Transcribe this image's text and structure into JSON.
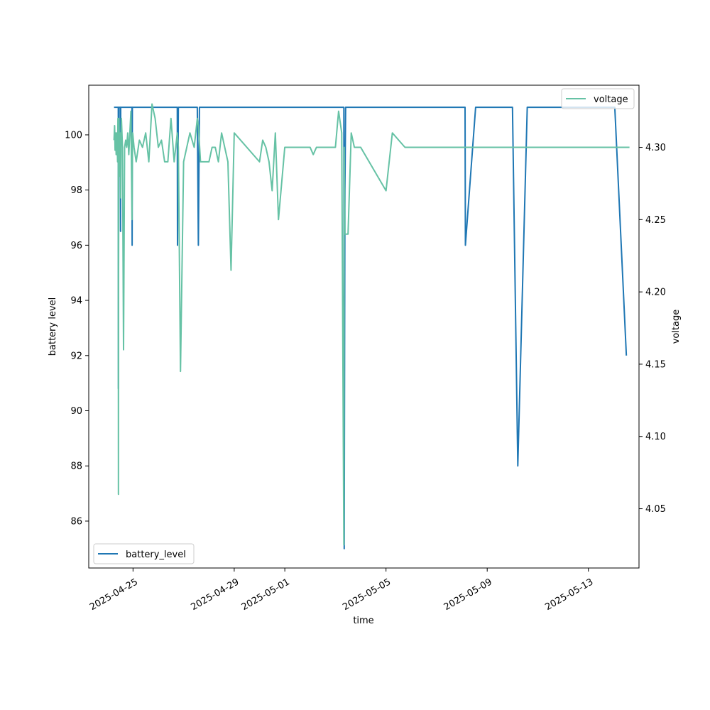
{
  "chart_data": {
    "type": "line",
    "xlabel": "time",
    "ylabel": "battery level",
    "y2label": "voltage",
    "xlim": [
      "2025-04-23T06:00",
      "2025-05-15T00:00"
    ],
    "ylim": [
      84.3,
      101.8
    ],
    "y2lim": [
      4.009,
      4.343
    ],
    "x_ticks": [
      "2025-04-25",
      "2025-04-29",
      "2025-05-01",
      "2025-05-05",
      "2025-05-09",
      "2025-05-13"
    ],
    "y_ticks": [
      86,
      88,
      90,
      92,
      94,
      96,
      98,
      100
    ],
    "y2_ticks": [
      "4.05",
      "4.10",
      "4.15",
      "4.20",
      "4.25",
      "4.30"
    ],
    "legend": {
      "left_axis": "lower-left",
      "right_axis": "upper-right"
    },
    "grid": false,
    "series": [
      {
        "name": "battery_level",
        "axis": "left",
        "color": "#1f77b4",
        "x": [
          "2025-04-24T06:00",
          "2025-04-24T10:00",
          "2025-04-24T10:10",
          "2025-04-24T10:20",
          "2025-04-24T10:30",
          "2025-04-24T10:40",
          "2025-04-24T12:00",
          "2025-04-24T12:10",
          "2025-04-24T12:20",
          "2025-04-24T12:30",
          "2025-04-24T23:00",
          "2025-04-24T23:10",
          "2025-04-24T23:20",
          "2025-04-24T23:30",
          "2025-04-26T17:00",
          "2025-04-26T18:00",
          "2025-04-26T18:10",
          "2025-04-26T19:00",
          "2025-04-26T20:00",
          "2025-04-27T13:00",
          "2025-04-27T14:00",
          "2025-04-27T15:00",
          "2025-05-03T08:00",
          "2025-05-03T08:20",
          "2025-05-03T09:00",
          "2025-05-03T09:40",
          "2025-05-08T03:00",
          "2025-05-08T03:20",
          "2025-05-08T13:00",
          "2025-05-10T00:00",
          "2025-05-10T05:00",
          "2025-05-10T14:00",
          "2025-05-14T01:00",
          "2025-05-14T12:00"
        ],
        "y": [
          101,
          101,
          90.8,
          97.2,
          101,
          101,
          101,
          96.5,
          101,
          101,
          101,
          96,
          101,
          101,
          101,
          101,
          96,
          101,
          101,
          101,
          96,
          101,
          101,
          85,
          98,
          101,
          101,
          96,
          101,
          101,
          88,
          101,
          101,
          92
        ]
      },
      {
        "name": "voltage",
        "axis": "right",
        "color": "#66c2a5",
        "x": [
          "2025-04-24T06:00",
          "2025-04-24T06:30",
          "2025-04-24T07:00",
          "2025-04-24T07:30",
          "2025-04-24T08:00",
          "2025-04-24T08:30",
          "2025-04-24T09:00",
          "2025-04-24T09:20",
          "2025-04-24T09:40",
          "2025-04-24T10:00",
          "2025-04-24T10:10",
          "2025-04-24T10:20",
          "2025-04-24T10:40",
          "2025-04-24T11:00",
          "2025-04-24T11:30",
          "2025-04-24T12:00",
          "2025-04-24T12:20",
          "2025-04-24T12:40",
          "2025-04-24T13:00",
          "2025-04-24T14:00",
          "2025-04-24T15:00",
          "2025-04-24T16:00",
          "2025-04-24T17:00",
          "2025-04-24T18:00",
          "2025-04-24T19:00",
          "2025-04-24T20:00",
          "2025-04-24T21:00",
          "2025-04-24T22:00",
          "2025-04-24T23:00",
          "2025-04-24T23:20",
          "2025-04-24T23:40",
          "2025-04-25T01:00",
          "2025-04-25T03:00",
          "2025-04-25T06:00",
          "2025-04-25T09:00",
          "2025-04-25T12:00",
          "2025-04-25T15:00",
          "2025-04-25T18:00",
          "2025-04-25T21:00",
          "2025-04-26T00:00",
          "2025-04-26T03:00",
          "2025-04-26T06:00",
          "2025-04-26T09:00",
          "2025-04-26T12:00",
          "2025-04-26T15:00",
          "2025-04-26T18:00",
          "2025-04-26T19:00",
          "2025-04-26T21:00",
          "2025-04-27T00:00",
          "2025-04-27T06:00",
          "2025-04-27T10:00",
          "2025-04-27T13:00",
          "2025-04-27T14:00",
          "2025-04-27T16:00",
          "2025-04-28T00:00",
          "2025-04-28T03:00",
          "2025-04-28T06:00",
          "2025-04-28T09:00",
          "2025-04-28T12:00",
          "2025-04-28T15:00",
          "2025-04-28T18:00",
          "2025-04-28T21:00",
          "2025-04-29T00:00",
          "2025-04-30T00:00",
          "2025-04-30T03:00",
          "2025-04-30T06:00",
          "2025-04-30T09:00",
          "2025-04-30T12:00",
          "2025-04-30T15:00",
          "2025-04-30T18:00",
          "2025-05-01T00:00",
          "2025-05-01T06:00",
          "2025-05-01T12:00",
          "2025-05-01T18:00",
          "2025-05-02T00:00",
          "2025-05-02T03:00",
          "2025-05-02T06:00",
          "2025-05-02T12:00",
          "2025-05-02T18:00",
          "2025-05-03T00:00",
          "2025-05-03T03:00",
          "2025-05-03T06:00",
          "2025-05-03T08:00",
          "2025-05-03T08:20",
          "2025-05-03T09:00",
          "2025-05-03T12:00",
          "2025-05-03T15:00",
          "2025-05-03T18:00",
          "2025-05-03T21:00",
          "2025-05-04T00:00",
          "2025-05-05T00:00",
          "2025-05-05T06:00",
          "2025-05-05T12:00",
          "2025-05-05T18:00",
          "2025-05-06T00:00",
          "2025-05-06T06:00",
          "2025-05-06T12:00",
          "2025-05-06T18:00",
          "2025-05-07T00:00",
          "2025-05-07T06:00",
          "2025-05-07T12:00",
          "2025-05-07T18:00",
          "2025-05-08T00:00",
          "2025-05-08T03:00",
          "2025-05-08T06:00",
          "2025-05-08T09:00",
          "2025-05-08T12:00",
          "2025-05-08T15:00",
          "2025-05-08T18:00",
          "2025-05-08T21:00",
          "2025-05-09T00:00",
          "2025-05-09T06:00",
          "2025-05-09T12:00",
          "2025-05-09T18:00",
          "2025-05-10T00:00",
          "2025-05-10T03:00",
          "2025-05-10T05:00",
          "2025-05-10T09:00",
          "2025-05-10T14:00",
          "2025-05-10T18:00",
          "2025-05-11T00:00",
          "2025-05-11T06:00",
          "2025-05-11T12:00",
          "2025-05-11T18:00",
          "2025-05-12T00:00",
          "2025-05-12T06:00",
          "2025-05-12T12:00",
          "2025-05-12T18:00",
          "2025-05-13T00:00",
          "2025-05-13T06:00",
          "2025-05-13T12:00",
          "2025-05-13T18:00",
          "2025-05-14T00:00",
          "2025-05-14T06:00",
          "2025-05-14T12:00",
          "2025-05-14T15:00"
        ],
        "y": [
          4.305,
          4.315,
          4.298,
          4.31,
          4.295,
          4.31,
          4.3,
          4.29,
          4.32,
          4.298,
          4.06,
          4.28,
          4.32,
          4.29,
          4.28,
          4.31,
          4.265,
          4.31,
          4.32,
          4.3,
          4.16,
          4.3,
          4.305,
          4.3,
          4.31,
          4.295,
          4.31,
          4.325,
          4.25,
          4.29,
          4.31,
          4.3,
          4.29,
          4.305,
          4.3,
          4.31,
          4.29,
          4.33,
          4.32,
          4.3,
          4.305,
          4.29,
          4.29,
          4.32,
          4.29,
          4.31,
          4.3,
          4.145,
          4.29,
          4.31,
          4.3,
          4.32,
          4.315,
          4.29,
          4.29,
          4.3,
          4.3,
          4.29,
          4.31,
          4.3,
          4.29,
          4.215,
          4.31,
          4.29,
          4.305,
          4.3,
          4.29,
          4.27,
          4.31,
          4.25,
          4.3,
          4.3,
          4.3,
          4.3,
          4.3,
          4.295,
          4.3,
          4.3,
          4.3,
          4.3,
          4.325,
          4.31,
          4.025,
          4.3,
          4.24,
          4.24,
          4.31,
          4.3,
          4.3,
          4.3,
          4.27,
          4.31,
          4.305,
          4.3,
          4.3,
          4.3,
          4.3,
          4.3,
          4.3,
          4.3,
          4.3,
          4.3,
          4.3,
          4.3,
          4.3,
          4.3,
          4.3,
          4.3,
          4.3,
          4.3,
          4.3,
          4.3,
          4.3,
          4.3,
          4.3,
          4.3,
          4.3,
          4.3,
          4.3,
          4.3,
          4.3,
          4.3,
          4.3,
          4.3,
          4.3,
          4.3,
          4.3,
          4.3,
          4.3,
          4.3,
          4.3,
          4.3,
          4.3,
          4.3,
          4.3,
          4.3
        ]
      }
    ]
  }
}
